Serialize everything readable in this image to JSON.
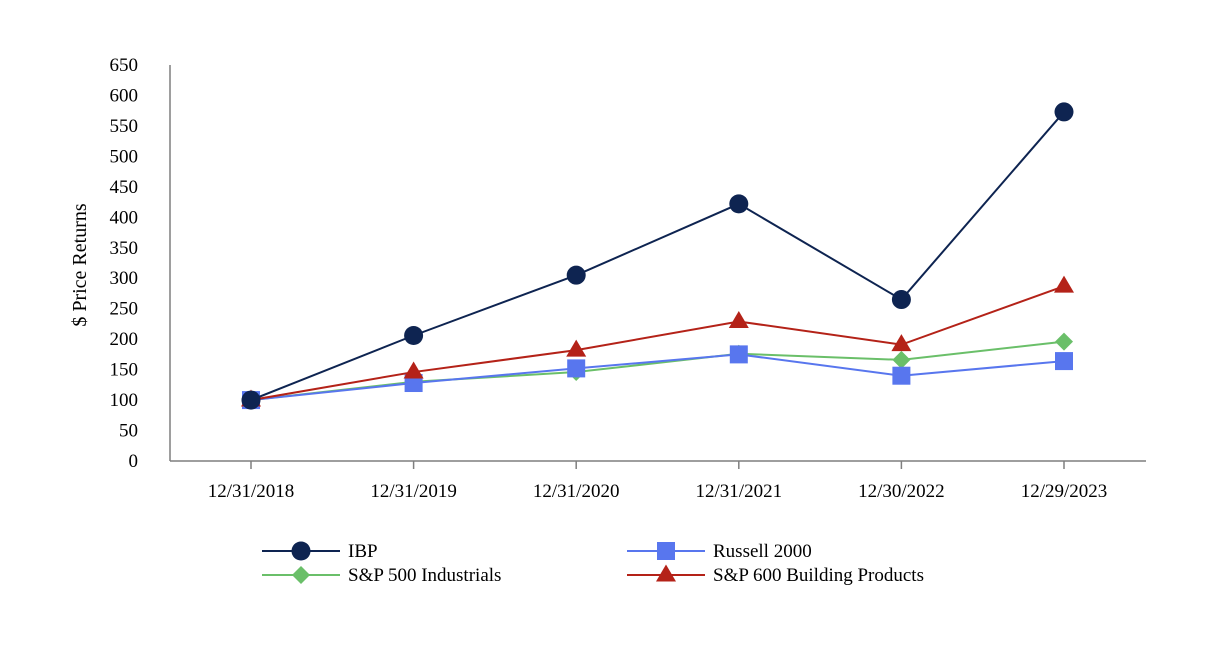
{
  "chart_data": {
    "type": "line",
    "title": "",
    "xlabel": "",
    "ylabel": "$ Price Returns",
    "categories": [
      "12/31/2018",
      "12/31/2019",
      "12/31/2020",
      "12/31/2021",
      "12/30/2022",
      "12/29/2023"
    ],
    "ylim": [
      0,
      650
    ],
    "yticks": [
      0,
      50,
      100,
      150,
      200,
      250,
      300,
      350,
      400,
      450,
      500,
      550,
      600,
      650
    ],
    "grid": false,
    "legend_position": "bottom",
    "series": [
      {
        "name": "IBP",
        "marker": "circle",
        "color": "#0e2451",
        "values": [
          100,
          206,
          305,
          422,
          265,
          573
        ]
      },
      {
        "name": "Russell 2000",
        "marker": "square",
        "color": "#5876ee",
        "values": [
          100,
          128,
          152,
          175,
          140,
          164
        ]
      },
      {
        "name": "S&P 500 Industrials",
        "marker": "diamond",
        "color": "#6abf69",
        "values": [
          100,
          130,
          146,
          176,
          166,
          196
        ]
      },
      {
        "name": "S&P 600 Building Products",
        "marker": "triangle",
        "color": "#b42218",
        "values": [
          100,
          146,
          182,
          229,
          191,
          287
        ]
      }
    ]
  }
}
